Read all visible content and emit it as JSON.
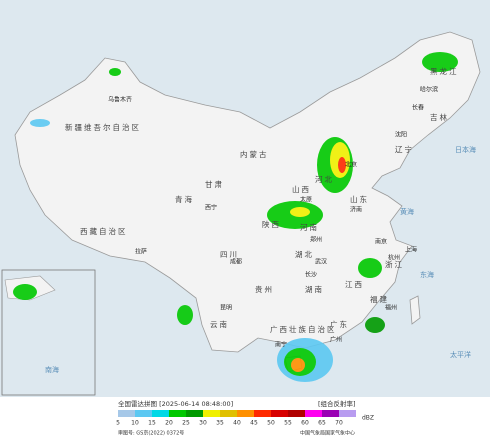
{
  "title": "全国雷达拼图 [2025-06-14 08:48:00]",
  "product": "[组合反射率]",
  "legend": {
    "unit": "dBZ",
    "items": [
      {
        "value": 5,
        "color": "#a6c8e8"
      },
      {
        "value": 10,
        "color": "#5cc8f2"
      },
      {
        "value": 15,
        "color": "#00d8e6"
      },
      {
        "value": 20,
        "color": "#00c800"
      },
      {
        "value": 25,
        "color": "#009a00"
      },
      {
        "value": 30,
        "color": "#f0f000"
      },
      {
        "value": 35,
        "color": "#e0c000"
      },
      {
        "value": 40,
        "color": "#ff9000"
      },
      {
        "value": 45,
        "color": "#ff2a00"
      },
      {
        "value": 50,
        "color": "#d80000"
      },
      {
        "value": 55,
        "color": "#b00000"
      },
      {
        "value": 60,
        "color": "#ff00f0"
      },
      {
        "value": 65,
        "color": "#9a00b4"
      },
      {
        "value": 70,
        "color": "#b89cf0"
      }
    ]
  },
  "footer": {
    "approval": "审图号: GS京(2022) 0372号",
    "publisher": "中国气象局国家气象中心"
  },
  "provinces": [
    "新疆维吾尔自治区",
    "西藏自治区",
    "青海",
    "内蒙古",
    "四川",
    "云南",
    "黑龙江",
    "吉林",
    "辽宁",
    "山东",
    "河南",
    "湖北",
    "湖南",
    "江西",
    "广东",
    "广西壮族自治区",
    "贵州",
    "甘肃",
    "陕西",
    "山西",
    "河北",
    "浙江",
    "福建"
  ],
  "cities": [
    "乌鲁木齐",
    "拉萨",
    "西宁",
    "成都",
    "昆明",
    "长沙",
    "广州",
    "南宁",
    "哈尔滨",
    "长春",
    "沈阳",
    "济南",
    "郑州",
    "武汉",
    "南京",
    "上海",
    "杭州",
    "福州",
    "北京",
    "太原"
  ],
  "seas": [
    "日本海",
    "黄海",
    "东海",
    "太平洋",
    "南海"
  ]
}
